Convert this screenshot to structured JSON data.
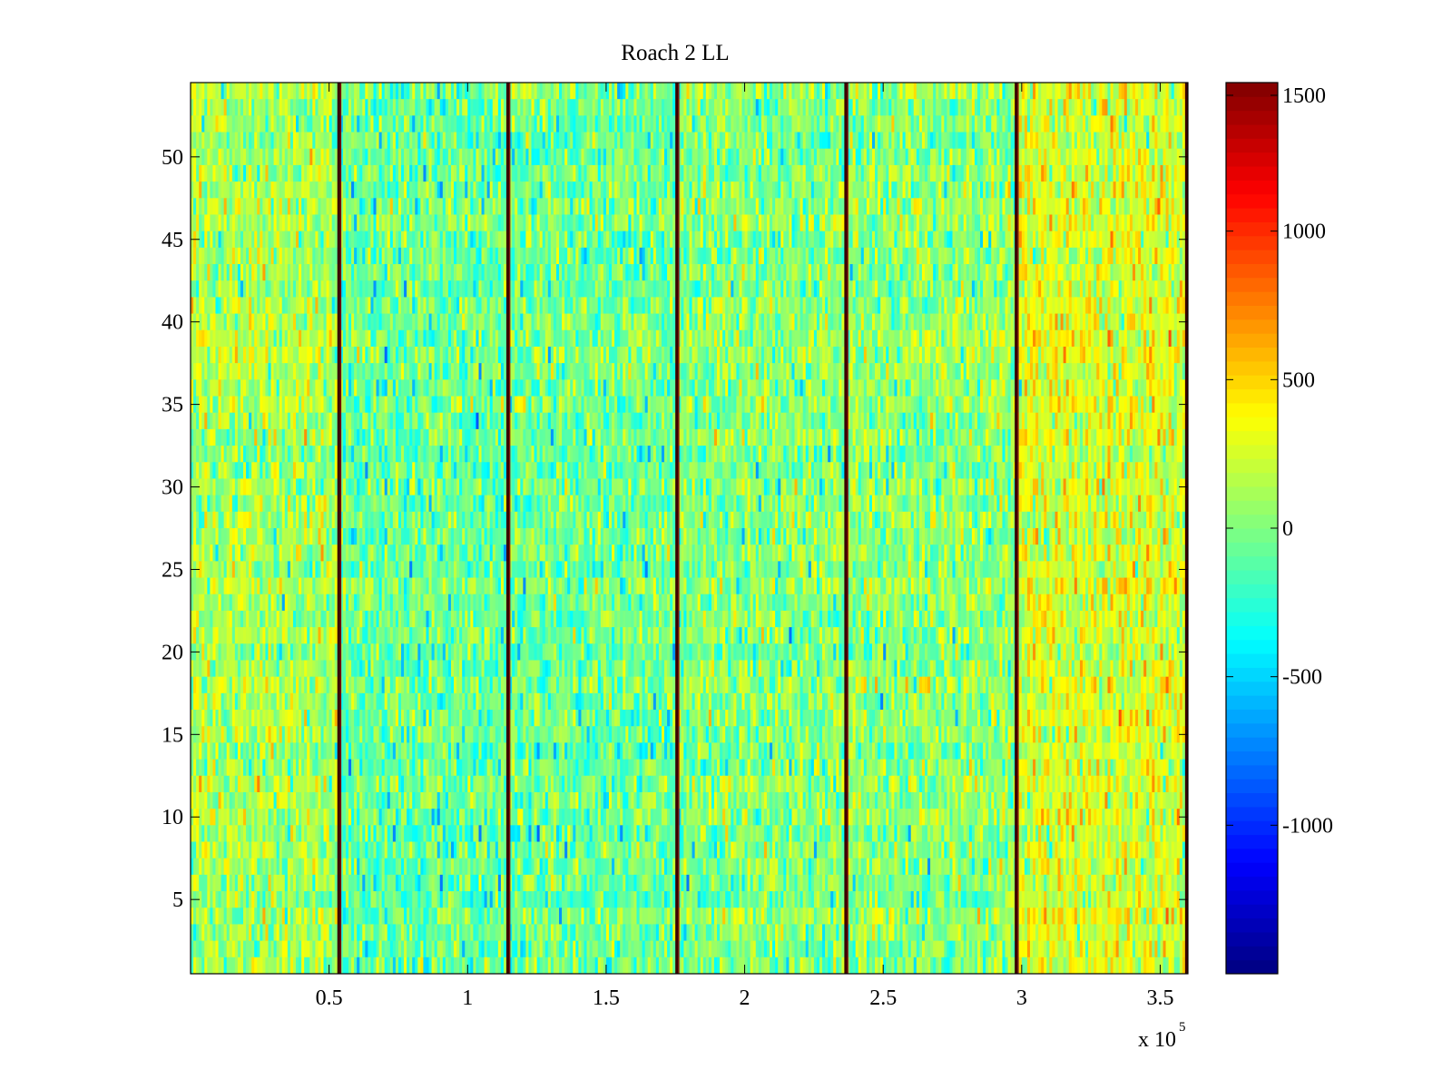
{
  "chart_data": {
    "type": "heatmap",
    "title": "Roach 2 LL",
    "xlabel": "",
    "ylabel": "",
    "x_multiplier_label": {
      "base": "x 10",
      "exponent": "5"
    },
    "xlim": [
      0,
      3.6
    ],
    "ylim": [
      0.5,
      54.5
    ],
    "x_ticks": [
      {
        "value": 0.5,
        "label": "0.5"
      },
      {
        "value": 1,
        "label": "1"
      },
      {
        "value": 1.5,
        "label": "1.5"
      },
      {
        "value": 2,
        "label": "2"
      },
      {
        "value": 2.5,
        "label": "2.5"
      },
      {
        "value": 3,
        "label": "3"
      },
      {
        "value": 3.5,
        "label": "3.5"
      }
    ],
    "y_ticks": [
      {
        "value": 5,
        "label": "5"
      },
      {
        "value": 10,
        "label": "10"
      },
      {
        "value": 15,
        "label": "15"
      },
      {
        "value": 20,
        "label": "20"
      },
      {
        "value": 25,
        "label": "25"
      },
      {
        "value": 30,
        "label": "30"
      },
      {
        "value": 35,
        "label": "35"
      },
      {
        "value": 40,
        "label": "40"
      },
      {
        "value": 45,
        "label": "45"
      },
      {
        "value": 50,
        "label": "50"
      }
    ],
    "rows": 54,
    "columns_approx": 360000,
    "grid": false,
    "colormap": "jet",
    "colorbar": {
      "location": "right",
      "clim": [
        -1500,
        1500
      ],
      "ticks": [
        {
          "value": 1500,
          "label": "1500"
        },
        {
          "value": 1000,
          "label": "1000"
        },
        {
          "value": 500,
          "label": "500"
        },
        {
          "value": 0,
          "label": "0"
        },
        {
          "value": -500,
          "label": "-500"
        },
        {
          "value": -1000,
          "label": "-1000"
        }
      ]
    },
    "value_summary": {
      "typical_range": [
        -600,
        600
      ],
      "background_mean": 0
    },
    "segments": [
      {
        "x_start": 0.0,
        "x_end": 0.535,
        "mean_value": 130
      },
      {
        "x_start": 0.535,
        "x_end": 1.145,
        "mean_value": -60
      },
      {
        "x_start": 1.145,
        "x_end": 1.755,
        "mean_value": -40
      },
      {
        "x_start": 1.755,
        "x_end": 2.365,
        "mean_value": 30
      },
      {
        "x_start": 2.365,
        "x_end": 2.98,
        "mean_value": 50
      },
      {
        "x_start": 2.98,
        "x_end": 3.6,
        "mean_value": 280
      }
    ],
    "vertical_line_features": [
      {
        "x": 0.535,
        "value": 1500
      },
      {
        "x": 1.145,
        "value": 1500
      },
      {
        "x": 1.755,
        "value": 1500
      },
      {
        "x": 2.365,
        "value": 1500
      },
      {
        "x": 2.98,
        "value": 1500
      },
      {
        "x": 3.595,
        "value": 1500
      }
    ]
  }
}
